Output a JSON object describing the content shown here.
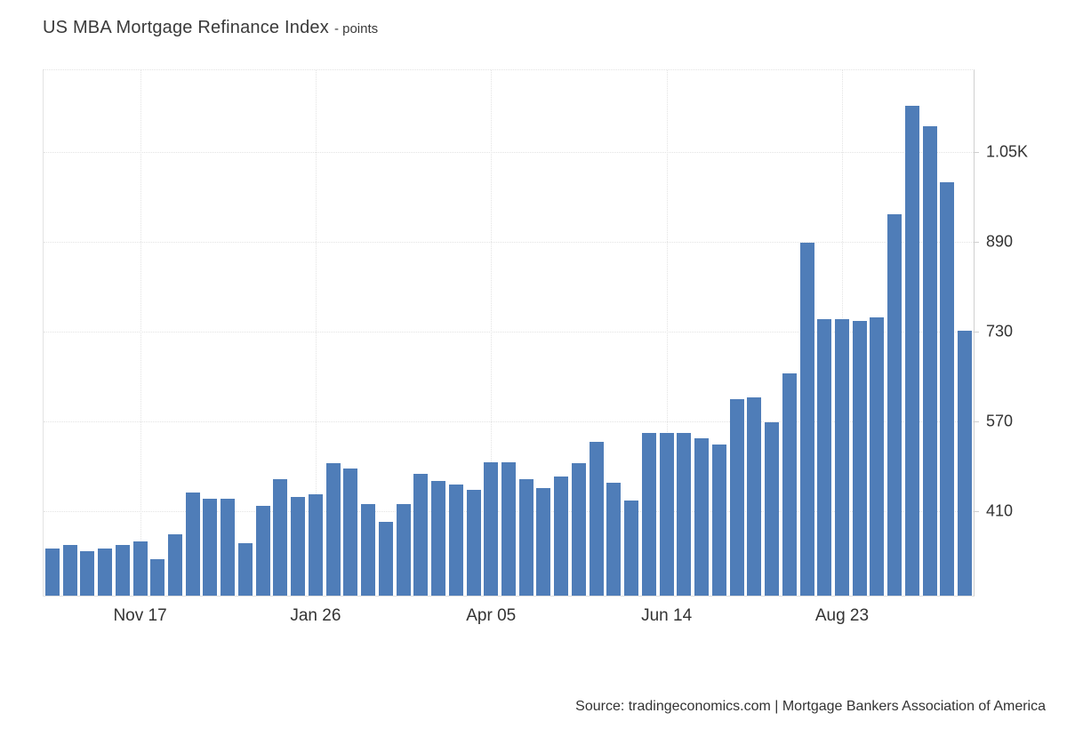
{
  "header": {
    "title": "US MBA Mortgage Refinance Index",
    "subtitle": "- points"
  },
  "source": {
    "text": "Source: tradingeconomics.com | Mortgage Bankers Association of America"
  },
  "chart_data": {
    "type": "bar",
    "title": "US MBA Mortgage Refinance Index",
    "unit": "points",
    "frequency": "weekly",
    "values": [
      343,
      350,
      338,
      343,
      350,
      356,
      324,
      369,
      442,
      432,
      432,
      353,
      419,
      466,
      435,
      440,
      495,
      486,
      422,
      390,
      422,
      476,
      463,
      457,
      448,
      496,
      496,
      466,
      451,
      472,
      495,
      533,
      460,
      428,
      549,
      549,
      549,
      539,
      528,
      609,
      612,
      568,
      655,
      888,
      752,
      752,
      749,
      755,
      938,
      1132,
      1096,
      995,
      731
    ],
    "x_tick_labels": [
      {
        "index": 5,
        "label": "Nov 17"
      },
      {
        "index": 15,
        "label": "Jan 26"
      },
      {
        "index": 25,
        "label": "Apr 05"
      },
      {
        "index": 35,
        "label": "Jun 14"
      },
      {
        "index": 45,
        "label": "Aug 23"
      }
    ],
    "y_ticks": [
      {
        "value": 410,
        "label": "410"
      },
      {
        "value": 570,
        "label": "570"
      },
      {
        "value": 730,
        "label": "730"
      },
      {
        "value": 890,
        "label": "890"
      },
      {
        "value": 1050,
        "label": "1.05K"
      }
    ],
    "ylim": [
      259,
      1195
    ],
    "grid": "dotted",
    "legend_position": "none",
    "colors": {
      "bar": "#4f7db8",
      "grid": "#e3e3e3",
      "axis": "#cfcfcf",
      "text": "#333333"
    }
  }
}
